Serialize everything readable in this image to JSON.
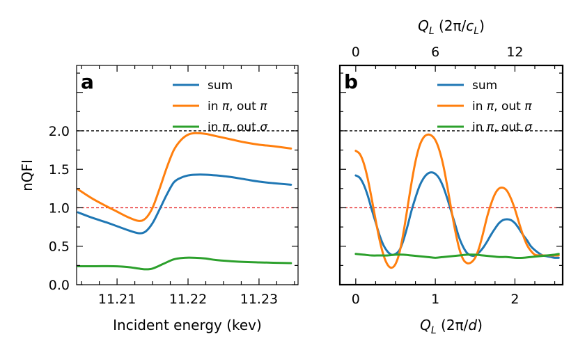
{
  "chart_data": [
    {
      "panel": "a",
      "type": "line",
      "xlabel": "Incident energy (kev)",
      "ylabel": "nQFI",
      "xlim": [
        11.2043,
        11.2355
      ],
      "ylim": [
        0.0,
        2.85
      ],
      "xticks": [
        11.21,
        11.22,
        11.23
      ],
      "xtick_labels": [
        "11.21",
        "11.22",
        "11.23"
      ],
      "yticks": [
        0.0,
        0.5,
        1.0,
        1.5,
        2.0
      ],
      "ytick_labels": [
        "0.0",
        "0.5",
        "1.0",
        "1.5",
        "2.0"
      ],
      "hlines": [
        {
          "y": 2.0,
          "color": "#000000",
          "style": "dashed"
        },
        {
          "y": 1.0,
          "color": "#e41a1c",
          "style": "dashed"
        }
      ],
      "legend": {
        "position": "top-right",
        "entries": [
          "sum",
          "in π, out π",
          "in π, out σ"
        ]
      },
      "series": [
        {
          "name": "sum",
          "color": "#1f77b4",
          "x": [
            11.2045,
            11.2065,
            11.2085,
            11.21,
            11.2115,
            11.213,
            11.214,
            11.215,
            11.216,
            11.217,
            11.218,
            11.219,
            11.22,
            11.221,
            11.2225,
            11.224,
            11.226,
            11.228,
            11.23,
            11.232,
            11.2345
          ],
          "y": [
            0.94,
            0.87,
            0.81,
            0.76,
            0.71,
            0.67,
            0.69,
            0.8,
            0.98,
            1.17,
            1.33,
            1.39,
            1.42,
            1.43,
            1.43,
            1.42,
            1.4,
            1.37,
            1.34,
            1.32,
            1.3
          ]
        },
        {
          "name": "in π, out π",
          "color": "#ff7f0e",
          "x": [
            11.2045,
            11.2065,
            11.2085,
            11.21,
            11.2115,
            11.213,
            11.214,
            11.215,
            11.216,
            11.217,
            11.218,
            11.219,
            11.22,
            11.221,
            11.2225,
            11.224,
            11.226,
            11.228,
            11.23,
            11.232,
            11.2345
          ],
          "y": [
            1.24,
            1.12,
            1.02,
            0.95,
            0.88,
            0.83,
            0.86,
            1.0,
            1.25,
            1.52,
            1.75,
            1.88,
            1.95,
            1.97,
            1.96,
            1.93,
            1.89,
            1.85,
            1.82,
            1.8,
            1.77
          ]
        },
        {
          "name": "in π, out σ",
          "color": "#2ca02c",
          "x": [
            11.2045,
            11.207,
            11.2095,
            11.2115,
            11.213,
            11.214,
            11.215,
            11.2165,
            11.218,
            11.2195,
            11.221,
            11.2225,
            11.224,
            11.227,
            11.23,
            11.2345
          ],
          "y": [
            0.24,
            0.24,
            0.24,
            0.23,
            0.21,
            0.2,
            0.21,
            0.27,
            0.33,
            0.35,
            0.35,
            0.34,
            0.32,
            0.3,
            0.29,
            0.28
          ]
        }
      ]
    },
    {
      "panel": "b",
      "type": "line",
      "xlabel": "Q_L (2π/d)",
      "top_xlabel": "Q_L (2π/c_L)",
      "xlim": [
        -0.2,
        2.6
      ],
      "ylim": [
        0.0,
        2.85
      ],
      "xticks": [
        0,
        1,
        2
      ],
      "xtick_labels": [
        "0",
        "1",
        "2"
      ],
      "top_xticks": [
        0,
        1,
        2
      ],
      "top_xtick_labels": [
        "0",
        "6",
        "12"
      ],
      "hlines": [
        {
          "y": 2.0,
          "color": "#000000",
          "style": "dashed"
        },
        {
          "y": 1.0,
          "color": "#e41a1c",
          "style": "dashed"
        }
      ],
      "legend": {
        "position": "top-right",
        "entries": [
          "sum",
          "in π, out π",
          "in π, out σ"
        ]
      },
      "series": [
        {
          "name": "sum",
          "color": "#1f77b4",
          "x": [
            0.0,
            0.05,
            0.1,
            0.15,
            0.2,
            0.25,
            0.3,
            0.35,
            0.4,
            0.45,
            0.5,
            0.55,
            0.6,
            0.65,
            0.7,
            0.75,
            0.8,
            0.85,
            0.9,
            0.95,
            1.0,
            1.05,
            1.1,
            1.15,
            1.2,
            1.25,
            1.3,
            1.35,
            1.4,
            1.45,
            1.5,
            1.55,
            1.6,
            1.65,
            1.7,
            1.75,
            1.8,
            1.85,
            1.9,
            1.95,
            2.0,
            2.05,
            2.1,
            2.15,
            2.2,
            2.25,
            2.3,
            2.35,
            2.4,
            2.45,
            2.5,
            2.55
          ],
          "y": [
            1.42,
            1.39,
            1.3,
            1.16,
            0.98,
            0.81,
            0.64,
            0.51,
            0.43,
            0.39,
            0.4,
            0.45,
            0.58,
            0.76,
            0.96,
            1.13,
            1.28,
            1.38,
            1.44,
            1.46,
            1.44,
            1.38,
            1.27,
            1.12,
            0.95,
            0.78,
            0.61,
            0.49,
            0.41,
            0.38,
            0.38,
            0.42,
            0.48,
            0.56,
            0.65,
            0.73,
            0.8,
            0.84,
            0.85,
            0.84,
            0.8,
            0.73,
            0.65,
            0.58,
            0.5,
            0.45,
            0.41,
            0.38,
            0.37,
            0.36,
            0.35,
            0.35
          ]
        },
        {
          "name": "in π, out π",
          "color": "#ff7f0e",
          "x": [
            0.0,
            0.05,
            0.1,
            0.15,
            0.2,
            0.25,
            0.3,
            0.35,
            0.4,
            0.45,
            0.5,
            0.55,
            0.6,
            0.65,
            0.7,
            0.75,
            0.8,
            0.85,
            0.9,
            0.95,
            1.0,
            1.05,
            1.1,
            1.15,
            1.2,
            1.25,
            1.3,
            1.35,
            1.4,
            1.45,
            1.5,
            1.55,
            1.6,
            1.65,
            1.7,
            1.75,
            1.8,
            1.85,
            1.9,
            1.95,
            2.0,
            2.05,
            2.1,
            2.15,
            2.2,
            2.25,
            2.3,
            2.35,
            2.4,
            2.45,
            2.5,
            2.55
          ],
          "y": [
            1.74,
            1.7,
            1.58,
            1.38,
            1.12,
            0.84,
            0.58,
            0.38,
            0.26,
            0.22,
            0.27,
            0.42,
            0.68,
            1.0,
            1.32,
            1.6,
            1.8,
            1.91,
            1.95,
            1.94,
            1.88,
            1.75,
            1.55,
            1.28,
            0.98,
            0.7,
            0.47,
            0.33,
            0.28,
            0.29,
            0.35,
            0.48,
            0.67,
            0.88,
            1.05,
            1.18,
            1.25,
            1.26,
            1.22,
            1.12,
            0.98,
            0.81,
            0.65,
            0.52,
            0.44,
            0.39,
            0.38,
            0.38,
            0.38,
            0.38,
            0.38,
            0.38
          ]
        },
        {
          "name": "in π, out σ",
          "color": "#2ca02c",
          "x": [
            0.0,
            0.1,
            0.2,
            0.3,
            0.4,
            0.5,
            0.6,
            0.7,
            0.8,
            0.9,
            1.0,
            1.1,
            1.2,
            1.3,
            1.4,
            1.5,
            1.6,
            1.7,
            1.8,
            1.9,
            2.0,
            2.1,
            2.2,
            2.3,
            2.4,
            2.5,
            2.55
          ],
          "y": [
            0.4,
            0.39,
            0.38,
            0.38,
            0.38,
            0.39,
            0.39,
            0.38,
            0.37,
            0.36,
            0.35,
            0.36,
            0.37,
            0.38,
            0.39,
            0.39,
            0.38,
            0.37,
            0.36,
            0.36,
            0.35,
            0.35,
            0.36,
            0.37,
            0.38,
            0.39,
            0.4
          ]
        }
      ]
    }
  ]
}
